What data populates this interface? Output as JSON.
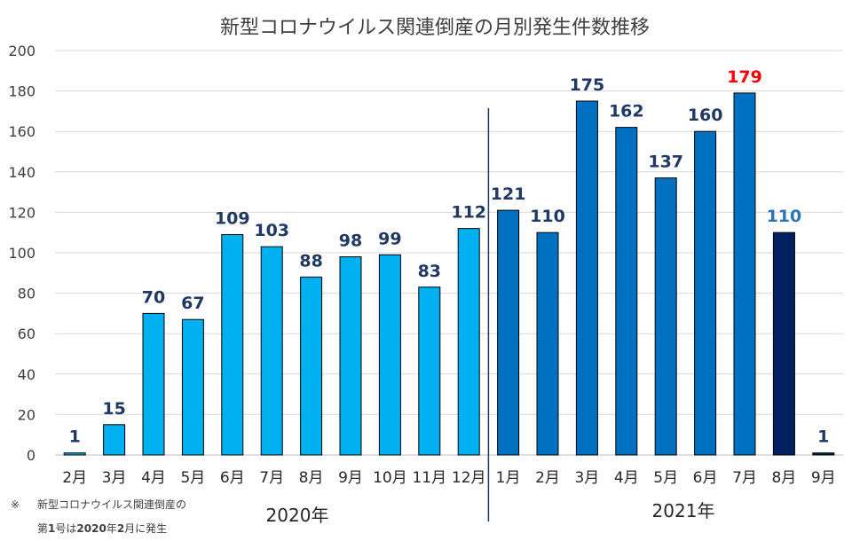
{
  "chart_data": {
    "type": "bar",
    "title": "新型コロナウイルス関連倒産の月別発生件数推移",
    "categories": [
      "2月",
      "3月",
      "4月",
      "5月",
      "6月",
      "7月",
      "8月",
      "9月",
      "10月",
      "11月",
      "12月",
      "1月",
      "2月",
      "3月",
      "4月",
      "5月",
      "6月",
      "7月",
      "8月",
      "9月"
    ],
    "years": [
      "2020年",
      "2021年"
    ],
    "year_split_index": 11,
    "values": [
      1,
      15,
      70,
      67,
      109,
      103,
      88,
      98,
      99,
      83,
      112,
      121,
      110,
      175,
      162,
      137,
      160,
      179,
      110,
      1
    ],
    "ylim": [
      0,
      200
    ],
    "yticks": [
      0,
      20,
      40,
      60,
      80,
      100,
      120,
      140,
      160,
      180,
      200
    ],
    "xlabel": "",
    "ylabel": "",
    "grid": true,
    "bar_colors": [
      "#00b0f0",
      "#00b0f0",
      "#00b0f0",
      "#00b0f0",
      "#00b0f0",
      "#00b0f0",
      "#00b0f0",
      "#00b0f0",
      "#00b0f0",
      "#00b0f0",
      "#00b0f0",
      "#0070c0",
      "#0070c0",
      "#0070c0",
      "#0070c0",
      "#0070c0",
      "#0070c0",
      "#0070c0",
      "#002060",
      "#002060"
    ],
    "label_colors": [
      "#1f3864",
      "#1f3864",
      "#1f3864",
      "#1f3864",
      "#1f3864",
      "#1f3864",
      "#1f3864",
      "#1f3864",
      "#1f3864",
      "#1f3864",
      "#1f3864",
      "#1f3864",
      "#1f3864",
      "#1f3864",
      "#1f3864",
      "#1f3864",
      "#1f3864",
      "#ff0000",
      "#2e75b6",
      "#1f3864"
    ]
  },
  "note": {
    "mark": "※",
    "line1": "新型コロナウイルス関連倒産の",
    "line2_parts": [
      "第",
      "1",
      "号は",
      "2020",
      "年",
      "2",
      "月に発生"
    ]
  }
}
